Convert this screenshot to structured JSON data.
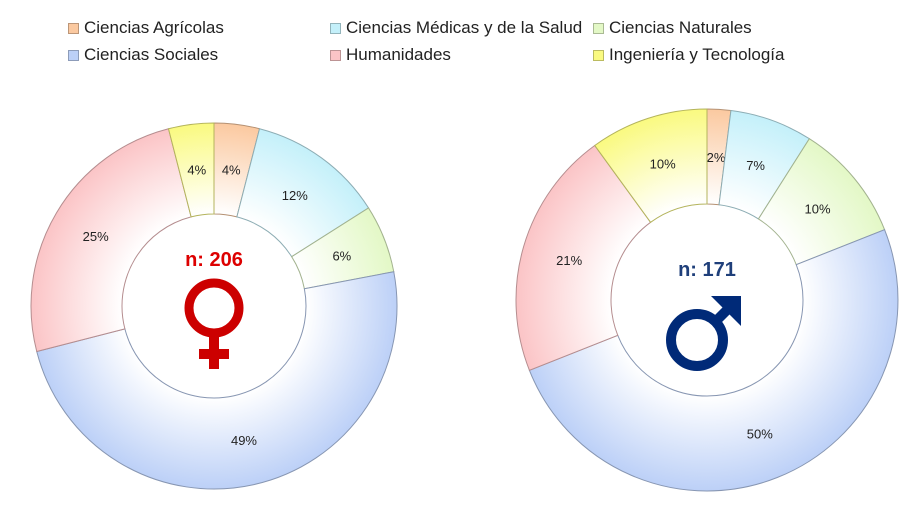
{
  "legend": [
    {
      "label": "Ciencias Agrícolas",
      "color": "#fbc9a0"
    },
    {
      "label": "Ciencias Médicas y de la Salud",
      "color": "#c4f0fa"
    },
    {
      "label": "Ciencias Naturales",
      "color": "#e3f8c6"
    },
    {
      "label": "Ciencias Sociales",
      "color": "#bcd0f7"
    },
    {
      "label": "Humanidades",
      "color": "#fbc4c6"
    },
    {
      "label": "Ingeniería y Tecnología",
      "color": "#fafa80"
    }
  ],
  "chart_data": [
    {
      "type": "pie",
      "variant": "doughnut",
      "center_label": "n: 206",
      "center_label_color": "#dd0000",
      "center_icon": "female-symbol-icon",
      "icon_color": "#cc0000",
      "categories": [
        "Ciencias Agrícolas",
        "Ciencias Médicas y de la Salud",
        "Ciencias Naturales",
        "Ciencias Sociales",
        "Humanidades",
        "Ingeniería y Tecnología"
      ],
      "values": [
        4,
        12,
        6,
        49,
        25,
        4
      ],
      "labels": [
        "4%",
        "12%",
        "6%",
        "49%",
        "25%",
        "4%"
      ]
    },
    {
      "type": "pie",
      "variant": "doughnut",
      "center_label": "n: 171",
      "center_label_color": "#1f3f7a",
      "center_icon": "male-symbol-icon",
      "icon_color": "#002a78",
      "categories": [
        "Ciencias Agrícolas",
        "Ciencias Médicas y de la Salud",
        "Ciencias Naturales",
        "Ciencias Sociales",
        "Humanidades",
        "Ingeniería y Tecnología"
      ],
      "values": [
        2,
        7,
        10,
        50,
        21,
        10
      ],
      "labels": [
        "2%",
        "7%",
        "10%",
        "50%",
        "21%",
        "10%"
      ]
    }
  ]
}
